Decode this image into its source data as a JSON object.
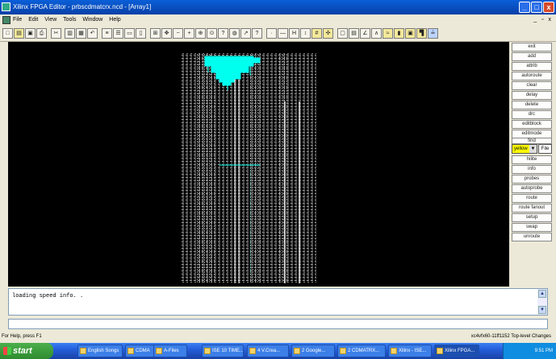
{
  "window": {
    "title": "Xilinx FPGA Editor - prbscdmatcrx.ncd - [Array1]"
  },
  "menu": [
    "File",
    "Edit",
    "View",
    "Tools",
    "Window",
    "Help"
  ],
  "mdi_controls": "_ ▫ x",
  "side_buttons": [
    "exit",
    "add",
    "attrib",
    "autoroute",
    "clear",
    "delay",
    "delete",
    "drc",
    "editblock",
    "editmode",
    "find",
    "hilite",
    "info",
    "probes",
    "route",
    "setup",
    "swap",
    "unroute"
  ],
  "side_select": {
    "value": "yellow",
    "file_label": "File"
  },
  "extra_buttons": [
    "autoprobe",
    "route fanout"
  ],
  "console": {
    "text": "loading speed info. ."
  },
  "status": {
    "left": "For Help, press F1",
    "right": "xc4vfx60-11ff1152  Top-level  Changes"
  },
  "taskbar": {
    "start": "start",
    "tasks": [
      "English Songs",
      "CDMA",
      "A-Files",
      "ISE 10 TIME...",
      "4 V.Crea...",
      "2 Google...",
      "2 CDMATRX...",
      "Xilinx - ISE...",
      "Xilinx FPGA..."
    ],
    "clock": "9:51 PM"
  }
}
